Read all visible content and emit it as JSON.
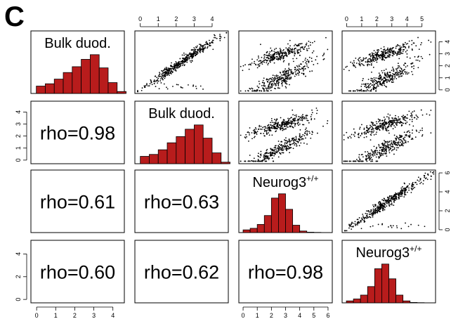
{
  "panel_letter": "C",
  "chart_data": {
    "type": "scatter-matrix",
    "variables": [
      {
        "name": "Bulk duod.",
        "sup": ""
      },
      {
        "name": "Bulk duod.",
        "sup": ""
      },
      {
        "name": "Neurog3",
        "sup": "+/+"
      },
      {
        "name": "Neurog3",
        "sup": "+/+"
      }
    ],
    "axes": {
      "top_col1": {
        "range": [
          -0.3,
          4.9
        ],
        "ticks": [
          0,
          1,
          2,
          3,
          4
        ]
      },
      "top_col3": {
        "range": [
          -0.3,
          5.9
        ],
        "ticks": [
          0,
          1,
          2,
          3,
          4,
          5
        ]
      },
      "right_row0": {
        "range": [
          -0.3,
          4.9
        ],
        "ticks": [
          0,
          1,
          2,
          3,
          4
        ]
      },
      "right_row2": {
        "range": [
          -0.3,
          6.3
        ],
        "ticks": [
          0,
          2,
          4,
          6
        ]
      },
      "left_row1": {
        "range": [
          -0.3,
          4.9
        ],
        "ticks": [
          0,
          1,
          2,
          3,
          4
        ]
      },
      "left_row3": {
        "range": [
          -0.3,
          5.2
        ],
        "ticks": [
          0,
          2,
          4
        ]
      },
      "bottom_col0": {
        "range": [
          -0.3,
          4.6
        ],
        "ticks": [
          0,
          1,
          2,
          3,
          4
        ]
      },
      "bottom_col2": {
        "range": [
          -0.3,
          6.3
        ],
        "ticks": [
          0,
          1,
          2,
          3,
          4,
          5,
          6
        ]
      }
    },
    "correlations": [
      {
        "row": 1,
        "col": 0,
        "label": "rho=0.98"
      },
      {
        "row": 2,
        "col": 0,
        "label": "rho=0.61"
      },
      {
        "row": 2,
        "col": 1,
        "label": "rho=0.63"
      },
      {
        "row": 3,
        "col": 0,
        "label": "rho=0.60"
      },
      {
        "row": 3,
        "col": 1,
        "label": "rho=0.62"
      },
      {
        "row": 3,
        "col": 2,
        "label": "rho=0.98"
      }
    ],
    "histograms": [
      {
        "index": 0,
        "range": [
          -0.3,
          4.9
        ],
        "edges": [
          0,
          0.5,
          1,
          1.5,
          2,
          2.5,
          3,
          3.5,
          4,
          4.5
        ],
        "counts": [
          0.19,
          0.25,
          0.37,
          0.54,
          0.69,
          0.88,
          1.0,
          0.66,
          0.28,
          0.05
        ]
      },
      {
        "index": 1,
        "range": [
          -0.3,
          4.9
        ],
        "edges": [
          0,
          0.5,
          1,
          1.5,
          2,
          2.5,
          3,
          3.5,
          4,
          4.5
        ],
        "counts": [
          0.19,
          0.24,
          0.36,
          0.54,
          0.7,
          0.89,
          1.0,
          0.66,
          0.28,
          0.04
        ]
      },
      {
        "index": 2,
        "range": [
          -0.3,
          6.3
        ],
        "edges": [
          0,
          0.5,
          1,
          1.5,
          2,
          2.5,
          3,
          3.5,
          4,
          4.5,
          5,
          5.5
        ],
        "counts": [
          0.07,
          0.11,
          0.21,
          0.44,
          0.89,
          1.0,
          0.6,
          0.19,
          0.04,
          0.01,
          0.005
        ]
      },
      {
        "index": 3,
        "range": [
          -0.3,
          6.3
        ],
        "edges": [
          0,
          0.5,
          1,
          1.5,
          2,
          2.5,
          3,
          3.5,
          4,
          4.5,
          5,
          5.5
        ],
        "counts": [
          0.05,
          0.1,
          0.2,
          0.42,
          0.88,
          1.0,
          0.62,
          0.2,
          0.05,
          0.01,
          0.005
        ]
      }
    ],
    "scatter": [
      {
        "row": 0,
        "col": 1,
        "pattern": "tight-diagonal",
        "n": 450
      },
      {
        "row": 0,
        "col": 2,
        "pattern": "two-bands",
        "n": 600
      },
      {
        "row": 0,
        "col": 3,
        "pattern": "two-bands",
        "n": 600
      },
      {
        "row": 1,
        "col": 2,
        "pattern": "two-bands",
        "n": 600
      },
      {
        "row": 1,
        "col": 3,
        "pattern": "two-bands",
        "n": 600
      },
      {
        "row": 2,
        "col": 3,
        "pattern": "tight-diagonal",
        "n": 450
      }
    ],
    "colors": {
      "bar_fill": "#b81c1c",
      "bar_stroke": "#000000",
      "point": "#000000"
    }
  }
}
